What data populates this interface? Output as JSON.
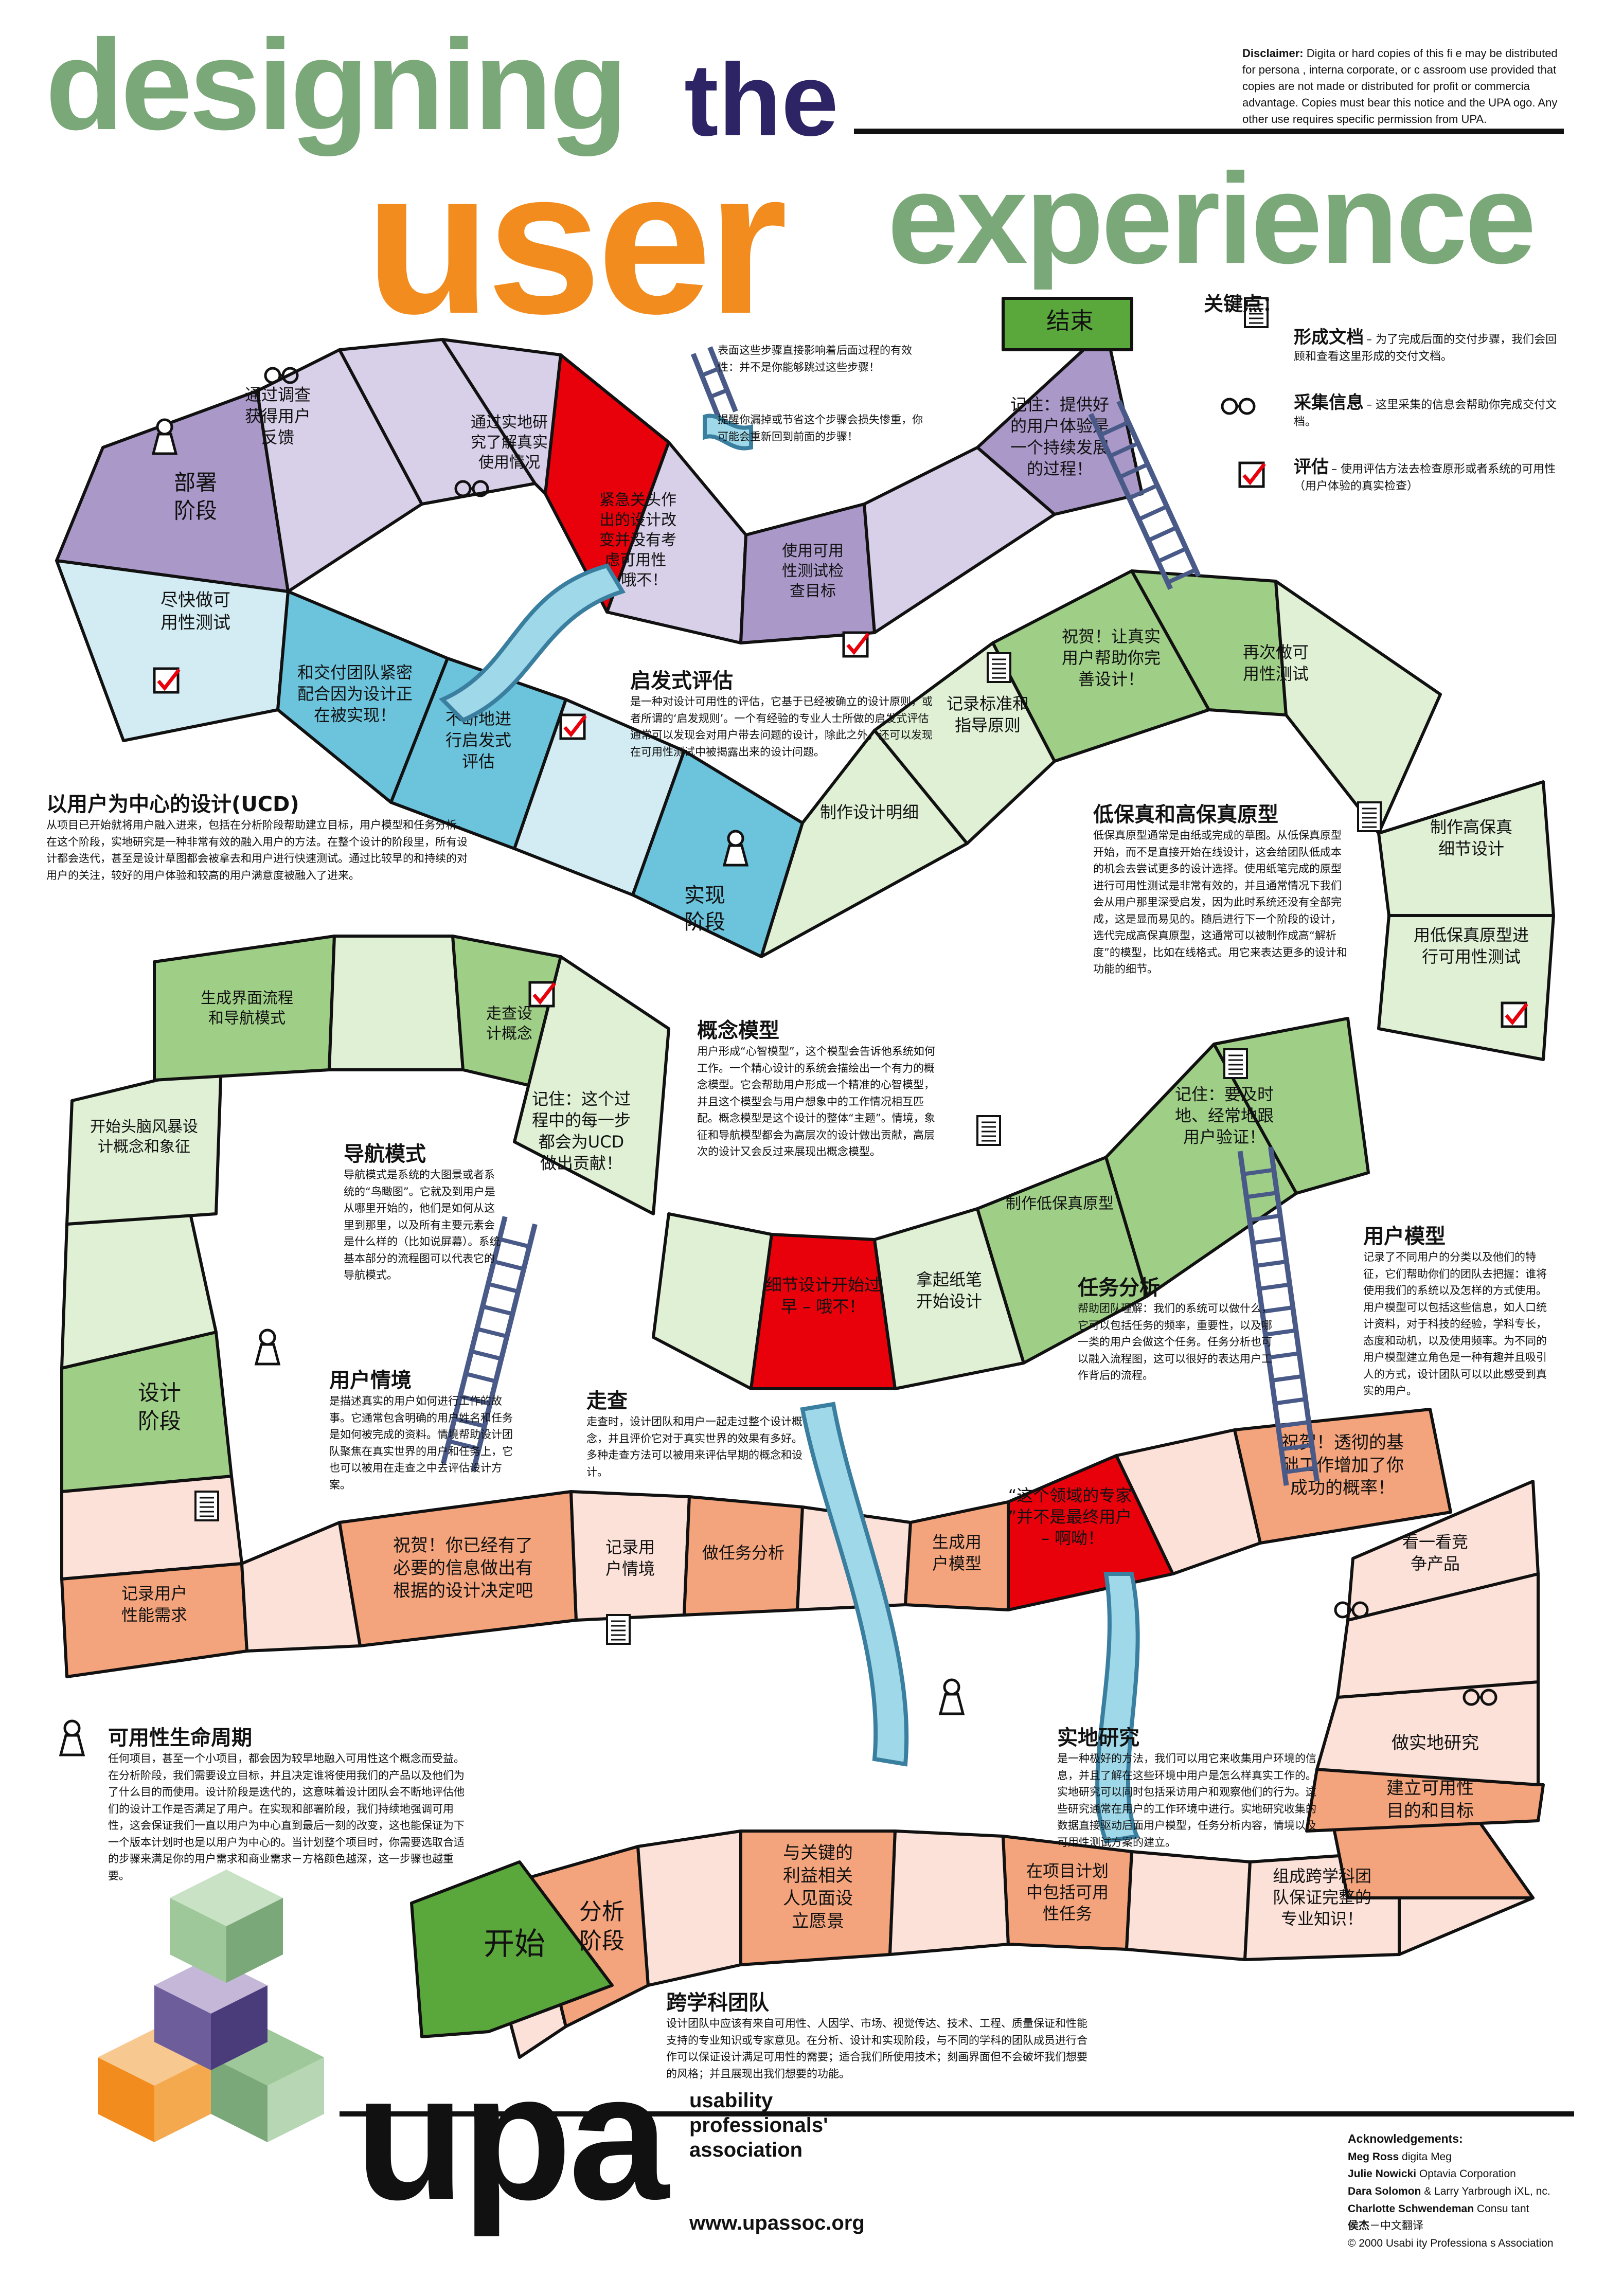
{
  "title": {
    "line1": "designing",
    "line1b": "the",
    "line2": "user",
    "line2b": "experience"
  },
  "disclaimer": {
    "label": "Disclaimer:",
    "text": "Digita or hard copies of this fi e may be distributed for persona , interna corporate, or c assroom use provided that copies are not made or distributed for profit or commercia advantage. Copies must bear this notice and the UPA ogo. Any other use requires specific permission from UPA."
  },
  "legend_top": {
    "ladder": "表面这些步骤直接影响着后面过程的有效性：并不是你能够跳过这些步骤！",
    "slide": "提醒你漏掉或节省这个步骤会损失惨重，你可能会重新回到前面的步骤！"
  },
  "key": {
    "heading": "关键点：",
    "items": [
      {
        "name": "形成文档",
        "desc": "– 为了完成后面的交付步骤，我们会回顾和查看这里形成的交付文档。",
        "icon": "document-icon"
      },
      {
        "name": "采集信息",
        "desc": "– 这里采集的信息会帮助你完成交付文档。",
        "icon": "glasses-icon"
      },
      {
        "name": "评估",
        "desc": "– 使用评估方法去检查原形或者系统的可用性（用户体验的真实检查）",
        "icon": "checkbox-icon"
      }
    ]
  },
  "cells": {
    "end": "结束",
    "remember_final": "记住：提供好的用户体验是一个持续发展的过程！",
    "usability_goals": "使用可用性测试检查目标",
    "emergency": "紧急关头作出的设计改变并没有考虑可用性 – 哦不！",
    "field_study_use": "通过实地研究了解真实使用情况",
    "feedback": "通过调查获得用户反馈",
    "deploy": "部署阶段",
    "quick_test": "尽快做可用性测试",
    "team_work": "和交付团队紧密配合因为设计正在被实现！",
    "heuristic_eval": "不断地进行启发式评估",
    "implement": "实现阶段",
    "spec": "制作设计明细",
    "standards": "记录标准和指导原则",
    "congrats_real": "祝贺！让真实用户帮助你完善设计！",
    "test_again": "再次做可用性测试",
    "hifi": "制作高保真细节设计",
    "lofi_test": "用低保真原型进行可用性测试",
    "remember_users": "记住：要及时地、经常地跟用户验证！",
    "make_lofi": "制作低保真原型",
    "paper_pen": "拿起纸笔开始设计",
    "detail_early": "细节设计开始过早 – 哦不！",
    "remember_ucd": "记住：这个过程中的每一步都会为UCD做出贡献！",
    "walkthrough": "走查设计概念",
    "flow_nav": "生成界面流程和导航模式",
    "brainstorm": "开始头脑风暴设计概念和象征",
    "design_phase": "设计阶段",
    "perf_req": "记录用户性能需求",
    "congrats_info": "祝贺！你已经有了必要的信息做出有根据的设计决定吧",
    "scenarios": "记录用户情境",
    "task_analysis": "做任务分析",
    "user_model": "生成用户模型",
    "experts": "“这个领域的专家”并不是最终用户 – 啊呦！",
    "congrats_research": "祝贺！透彻的基础工作增加了你成功的概率！",
    "competitors": "看一看竞争产品",
    "field_research": "做实地研究",
    "usability_goals2": "建立可用性目的和目标",
    "team_form": "组成跨学科团队保证完整的专业知识！",
    "project_plan": "在项目计划中包括可用性任务",
    "stakeholders": "与关键的利益相关人见面设立愿景",
    "analysis": "分析阶段",
    "start": "开始"
  },
  "blocks": {
    "ucd": {
      "title": "以用户为中心的设计(UCD)",
      "text": "从项目已开始就将用户融入进来，包括在分析阶段帮助建立目标，用户模型和任务分析。在这个阶段，实地研究是一种非常有效的融入用户的方法。在整个设计的阶段里，所有设计都会迭代，甚至是设计草图都会被拿去和用户进行快速测试。通过比较早的和持续的对用户的关注，较好的用户体验和较高的用户满意度被融入了进来。"
    },
    "heuristic": {
      "title": "启发式评估",
      "text": "是一种对设计可用性的评估，它基于已经被确立的设计原则，或者所谓的‘启发规则’。一个有经验的专业人士所做的启发式评估通常可以发现会对用户带去问题的设计，除此之外，还可以发现在可用性测试中被揭露出来的设计问题。"
    },
    "fidelity": {
      "title": "低保真和高保真原型",
      "text": "低保真原型通常是由纸或完成的草图。从低保真原型开始，而不是直接开始在线设计，这会给团队低成本的机会去尝试更多的设计选择。使用纸笔完成的原型进行可用性测试是非常有效的，并且通常情况下我们会从用户那里深受启发，因为此时系统还没有全部完成，这是显而易见的。随后进行下一个阶段的设计，选代完成高保真原型，这通常可以被制作成高“解析度”的模型，比如在线格式。用它来表达更多的设计和功能的细节。"
    },
    "concept": {
      "title": "概念模型",
      "text": "用户形成“心智模型”，这个模型会告诉他系统如何工作。一个精心设计的系统会描绘出一个有力的概念模型。它会帮助用户形成一个精准的心智模型，并且这个模型会与用户想象中的工作情况相互匹配。概念模型是这个设计的整体“主题”。情境，象征和导航模型都会为高层次的设计做出贡献，高层次的设计又会反过来展现出概念模型。"
    },
    "navigation": {
      "title": "导航模式",
      "text": "导航模式是系统的大图景或者系统的“鸟瞰图”。它就及到用户是从哪里开始的，他们是如何从这里到那里，以及所有主要元素会是什么样的（比如说屏幕）。系统基本部分的流程图可以代表它的导航模式。"
    },
    "user_model": {
      "title": "用户模型",
      "text": "记录了不同用户的分类以及他们的特征，它们帮助你们的团队去把握：谁将使用我们的系统以及怎样的方式使用。用户模型可以包括这些信息，如人口统计资料，对于科技的经验，学科专长，态度和动机，以及使用频率。为不同的用户模型建立角色是一种有趣并且吸引人的方式，设计团队可以以此感受到真实的用户。"
    },
    "task": {
      "title": "任务分析",
      "text": "帮助团队理解：我们的系统可以做什么，它可以包括任务的频率，重要性，以及哪一类的用户会做这个任务。任务分析也可以融入流程图，这可以很好的表达用户工作背后的流程。"
    },
    "scenario": {
      "title": "用户情境",
      "text": "是描述真实的用户如何进行工作的故事。它通常包含明确的用户姓名和任务是如何被完成的资料。情境帮助设计团队聚焦在真实世界的用户和任务上，它也可以被用在走查之中去评估设计方案。"
    },
    "walk": {
      "title": "走查",
      "text": "走查时，设计团队和用户一起走过整个设计概念，并且评价它对于真实世界的效果有多好。多种走查方法可以被用来评估早期的概念和设计。"
    },
    "lifecycle": {
      "title": "可用性生命周期",
      "text": "任何项目，甚至一个小项目，都会因为较早地融入可用性这个概念而受益。在分析阶段，我们需要设立目标，并且决定谁将使用我们的产品以及他们为了什么目的而使用。设计阶段是迭代的，这意味着设计团队会不断地评估他们的设计工作是否满足了用户。在实现和部署阶段，我们持续地强调可用性，这会保证我们一直以用户为中心直到最后一刻的改变，这也能保证为下一个版本计划时也是以用户为中心的。当计划整个项目时，你需要选取合适的步骤来满足你的用户需求和商业需求－方格颜色越深，这一步骤也越重要。"
    },
    "field": {
      "title": "实地研究",
      "text": "是一种极好的方法，我们可以用它来收集用户环境的信息，并且了解在这些环境中用户是怎么样真实工作的。实地研究可以同时包括采访用户和观察他们的行为。这些研究通常在用户的工作环境中进行。实地研究收集的数据直接驱动后面用户模型，任务分析内容，情境以及可用性测试方案的建立。"
    },
    "team": {
      "title": "跨学科团队",
      "text": "设计团队中应该有来自可用性、人因学、市场、视觉传达、技术、工程、质量保证和性能支持的专业知识或专家意见。在分析、设计和实现阶段，与不同的学科的团队成员进行合作可以保证设计满足可用性的需要；适合我们所使用技术；刻画界面但不会破坏我们想要的风格；并且展现出我们想要的功能。"
    }
  },
  "brand": {
    "logo": "upa",
    "org1": "usability",
    "org2": "professionals'",
    "org3": "association",
    "url": "www.upassoc.org"
  },
  "acknowledgements": {
    "heading": "Acknowledgements:",
    "people": [
      {
        "name": "Meg Ross",
        "org": "digita Meg"
      },
      {
        "name": "Julie Nowicki",
        "org": "Optavia Corporation"
      },
      {
        "name": "Dara Solomon",
        "org": "& Larry Yarbrough iXL, nc."
      },
      {
        "name": "Charlotte Schwendeman",
        "org": "Consu tant"
      },
      {
        "name": "侯杰",
        "org": "－中文翻译"
      }
    ],
    "copyright": "© 2000 Usabi ity Professiona s Association"
  },
  "colors": {
    "green_title": "#7aa879",
    "navy": "#2d2466",
    "orange": "#f28c1e",
    "lavender": "#d8cfe8",
    "purple": "#a998c8",
    "lightblue": "#d3ecf3",
    "blue": "#6cc3dc",
    "lightgreen": "#dff0d5",
    "green": "#9fcf87",
    "peach": "#fbe1d8",
    "salmon": "#f4a47c",
    "red": "#e8000b",
    "endgreen": "#5aa83c"
  }
}
